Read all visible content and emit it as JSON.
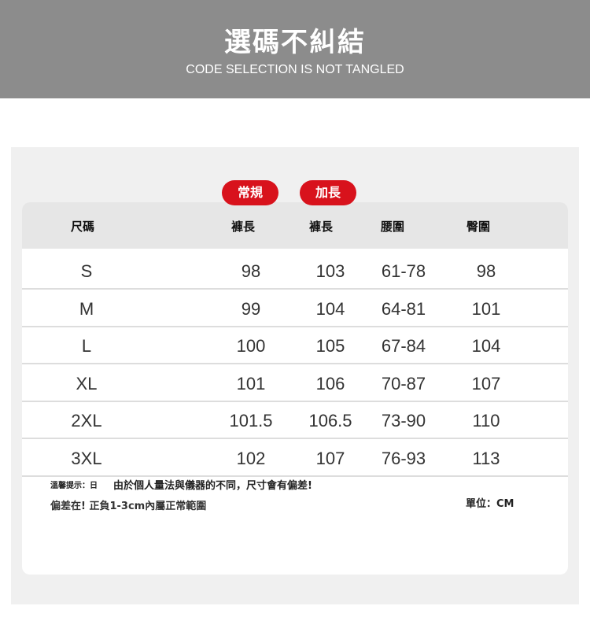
{
  "banner": {
    "title": "選碼不糾結",
    "subtitle": "CODE SELECTION IS NOT TANGLED"
  },
  "badges": {
    "regular": "常規",
    "long": "加長"
  },
  "table": {
    "headers": [
      "尺碼",
      "褲長",
      "褲長",
      "腰圍",
      "臀圍"
    ],
    "rows": [
      [
        "S",
        "98",
        "103",
        "61-78",
        "98"
      ],
      [
        "M",
        "99",
        "104",
        "64-81",
        "101"
      ],
      [
        "L",
        "100",
        "105",
        "67-84",
        "104"
      ],
      [
        "XL",
        "101",
        "106",
        "70-87",
        "107"
      ],
      [
        "2XL",
        "101.5",
        "106.5",
        "73-90",
        "110"
      ],
      [
        "3XL",
        "102",
        "107",
        "76-93",
        "113"
      ]
    ]
  },
  "notes": {
    "tip_label": "溫馨提示：日",
    "tip": "由於個人量法與儀器的不同，尺寸會有偏差!",
    "deviation": "偏差在! 正負1-3cm內屬正常範圍",
    "unit": "單位：CM"
  },
  "colors": {
    "accent": "#d8121c",
    "banner": "#8c8c8c"
  }
}
